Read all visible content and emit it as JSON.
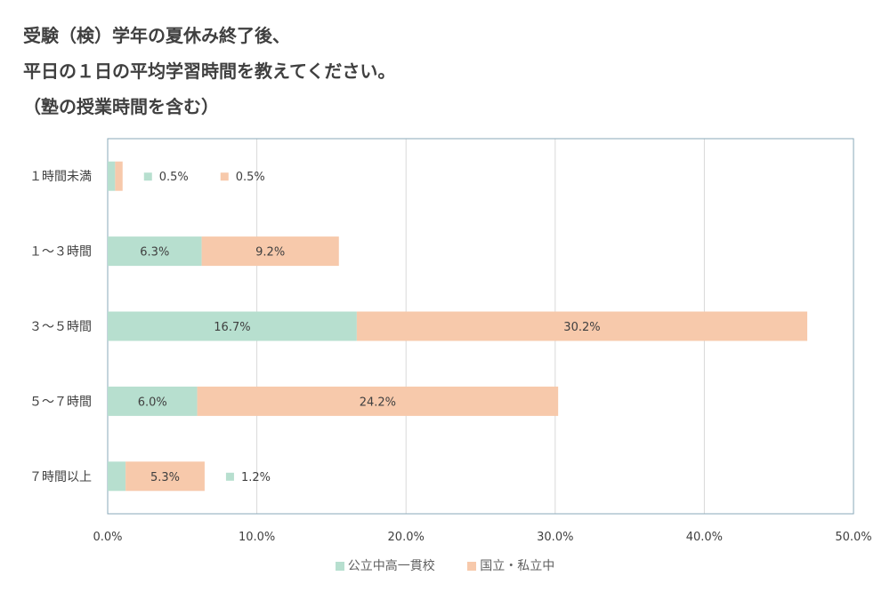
{
  "title_lines": [
    "受験（検）学年の夏休み終了後、",
    "平日の１日の平均学習時間を教えてください。",
    "（塾の授業時間を含む）"
  ],
  "colors": {
    "series1": "#b7dfcf",
    "series2": "#f7c9ab",
    "frame": "#8aa8b8",
    "grid": "#d9d9d9"
  },
  "chart_data": {
    "type": "bar",
    "orientation": "horizontal",
    "stacked": true,
    "categories": [
      "１時間未満",
      "１～３時間",
      "３～５時間",
      "５～７時間",
      "７時間以上"
    ],
    "series": [
      {
        "name": "公立中高一貫校",
        "values": [
          0.5,
          6.3,
          16.7,
          6.0,
          1.2
        ],
        "labels": [
          "0.5%",
          "6.3%",
          "16.7%",
          "6.0%",
          "1.2%"
        ]
      },
      {
        "name": "国立・私立中",
        "values": [
          0.5,
          9.2,
          30.2,
          24.2,
          5.3
        ],
        "labels": [
          "0.5%",
          "9.2%",
          "30.2%",
          "24.2%",
          "5.3%"
        ]
      }
    ],
    "xlim": [
      0,
      50
    ],
    "ticks": [
      "0.0%",
      "10.0%",
      "20.0%",
      "30.0%",
      "40.0%",
      "50.0%"
    ],
    "grid": true,
    "legend_position": "bottom"
  }
}
